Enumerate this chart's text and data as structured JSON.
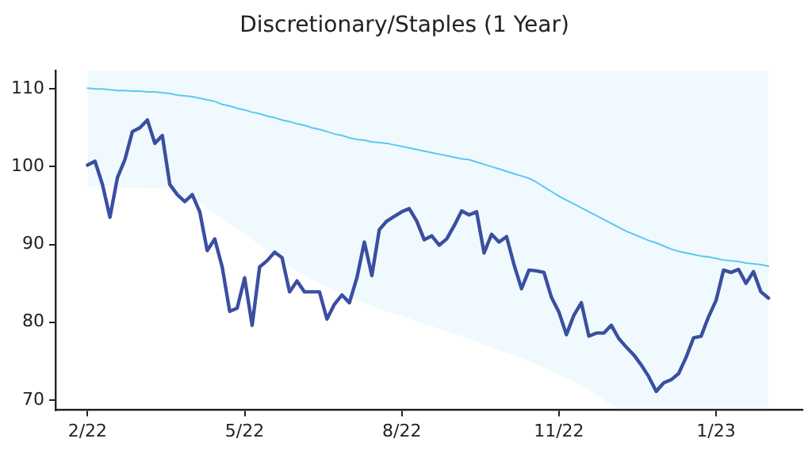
{
  "chart_data": {
    "type": "line",
    "title": "Discretionary/Staples (1 Year)",
    "categories": [
      "2/22",
      null,
      null,
      null,
      null,
      null,
      null,
      null,
      null,
      null,
      null,
      null,
      null,
      null,
      null,
      null,
      null,
      null,
      null,
      null,
      null,
      "5/22",
      null,
      null,
      null,
      null,
      null,
      null,
      null,
      null,
      null,
      null,
      null,
      null,
      null,
      null,
      null,
      null,
      null,
      null,
      null,
      null,
      "8/22",
      null,
      null,
      null,
      null,
      null,
      null,
      null,
      null,
      null,
      null,
      null,
      null,
      null,
      null,
      null,
      null,
      null,
      null,
      null,
      null,
      "11/22",
      null,
      null,
      null,
      null,
      null,
      null,
      null,
      null,
      null,
      null,
      null,
      null,
      null,
      null,
      null,
      null,
      null,
      null,
      null,
      null,
      "1/23",
      null,
      null,
      null,
      null,
      null,
      null,
      null
    ],
    "ylim": [
      68.7,
      112.3
    ],
    "yticks": [
      70,
      80,
      90,
      100,
      110
    ],
    "grid": false,
    "legend": false,
    "marker": "none",
    "line_style": "solid",
    "series": [
      {
        "color": "#5bc8f0",
        "values": [
          110.1,
          110.0,
          110.0,
          109.9,
          109.8,
          109.8,
          109.7,
          109.7,
          109.6,
          109.6,
          109.5,
          109.4,
          109.2,
          109.1,
          109.0,
          108.8,
          108.6,
          108.4,
          108.0,
          107.8,
          107.5,
          107.3,
          107.0,
          106.8,
          106.5,
          106.3,
          106.0,
          105.8,
          105.5,
          105.3,
          105.0,
          104.8,
          104.5,
          104.2,
          104.0,
          103.7,
          103.5,
          103.4,
          103.2,
          103.1,
          103.0,
          102.8,
          102.6,
          102.4,
          102.2,
          102.0,
          101.8,
          101.6,
          101.4,
          101.2,
          101.0,
          100.9,
          100.6,
          100.3,
          100.0,
          99.7,
          99.4,
          99.1,
          98.8,
          98.5,
          98.0,
          97.4,
          96.8,
          96.2,
          95.7,
          95.2,
          94.7,
          94.2,
          93.7,
          93.2,
          92.7,
          92.2,
          91.7,
          91.3,
          90.9,
          90.5,
          90.2,
          89.8,
          89.4,
          89.1,
          88.9,
          88.7,
          88.5,
          88.4,
          88.2,
          88.0,
          87.9,
          87.8,
          87.6,
          87.5,
          87.4,
          87.2
        ],
        "lower": [
          97.4,
          97.4,
          97.4,
          97.4,
          97.3,
          97.3,
          97.3,
          97.3,
          97.2,
          97.2,
          97.2,
          97.0,
          96.6,
          96.2,
          95.8,
          95.4,
          94.7,
          94.0,
          93.3,
          92.7,
          92.0,
          91.3,
          90.6,
          89.9,
          89.3,
          88.6,
          88.0,
          87.3,
          86.6,
          86.0,
          85.4,
          85.0,
          84.5,
          84.1,
          83.7,
          83.2,
          82.8,
          82.4,
          82.1,
          81.7,
          81.4,
          81.1,
          80.8,
          80.5,
          80.1,
          79.8,
          79.5,
          79.1,
          78.8,
          78.5,
          78.2,
          77.8,
          77.5,
          77.1,
          76.8,
          76.4,
          76.1,
          75.8,
          75.4,
          75.0,
          74.6,
          74.1,
          73.7,
          73.2,
          72.8,
          72.4,
          71.9,
          71.3,
          70.7,
          70.0,
          69.4,
          68.8,
          68.7,
          68.7,
          68.7,
          68.7,
          68.7,
          68.7,
          68.7,
          68.7,
          68.7,
          68.7,
          68.7,
          68.7,
          68.7,
          68.7,
          68.7,
          68.7,
          68.7,
          68.7,
          68.7,
          68.7
        ],
        "upper": [
          112.3,
          112.3,
          112.3,
          112.3,
          112.3,
          112.3,
          112.3,
          112.3,
          112.3,
          112.3,
          112.3,
          112.3,
          112.3,
          112.3,
          112.3,
          112.3,
          112.3,
          112.3,
          112.3,
          112.3,
          112.3,
          112.3,
          112.3,
          112.3,
          112.3,
          112.3,
          112.3,
          112.3,
          112.3,
          112.3,
          112.3,
          112.3,
          112.3,
          112.3,
          112.3,
          112.3,
          112.3,
          112.3,
          112.3,
          112.3,
          112.3,
          112.3,
          112.3,
          112.3,
          112.3,
          112.3,
          112.3,
          112.3,
          112.3,
          112.3,
          112.3,
          112.3,
          112.3,
          112.3,
          112.3,
          112.3,
          112.3,
          112.3,
          112.3,
          112.3,
          112.3,
          112.3,
          112.3,
          112.3,
          112.3,
          112.3,
          112.3,
          112.3,
          112.3,
          112.3,
          112.3,
          112.3,
          112.3,
          112.3,
          112.3,
          112.3,
          112.3,
          112.3,
          112.3,
          112.3,
          112.3,
          112.3,
          112.3,
          112.3,
          112.3,
          112.3,
          112.3,
          112.3,
          112.3,
          112.3,
          112.3,
          112.3
        ]
      },
      {
        "color": "#3a4fa0",
        "values": [
          100.2,
          100.7,
          97.7,
          93.5,
          98.6,
          100.9,
          104.5,
          105,
          106,
          103,
          104,
          97.7,
          96.4,
          95.5,
          96.4,
          94.2,
          89.2,
          90.7,
          87.1,
          81.4,
          81.8,
          85.7,
          79.6,
          87.1,
          87.9,
          89,
          88.3,
          83.9,
          85.3,
          83.9,
          83.9,
          83.9,
          80.4,
          82.3,
          83.5,
          82.5,
          85.7,
          90.3,
          86,
          91.9,
          93,
          93.6,
          94.2,
          94.6,
          93,
          90.6,
          91.1,
          89.9,
          90.7,
          92.4,
          94.3,
          93.8,
          94.2,
          88.9,
          91.3,
          90.3,
          91,
          87.4,
          84.3,
          86.7,
          86.6,
          86.4,
          83.2,
          81.3,
          78.4,
          80.9,
          82.5,
          78.2,
          78.6,
          78.6,
          79.6,
          77.9,
          76.8,
          75.8,
          74.5,
          73,
          71.1,
          72.2,
          72.6,
          73.4,
          75.5,
          78,
          78.2,
          80.7,
          82.8,
          86.7,
          86.4,
          86.8,
          85,
          86.5,
          83.9,
          83.1
        ]
      }
    ]
  }
}
